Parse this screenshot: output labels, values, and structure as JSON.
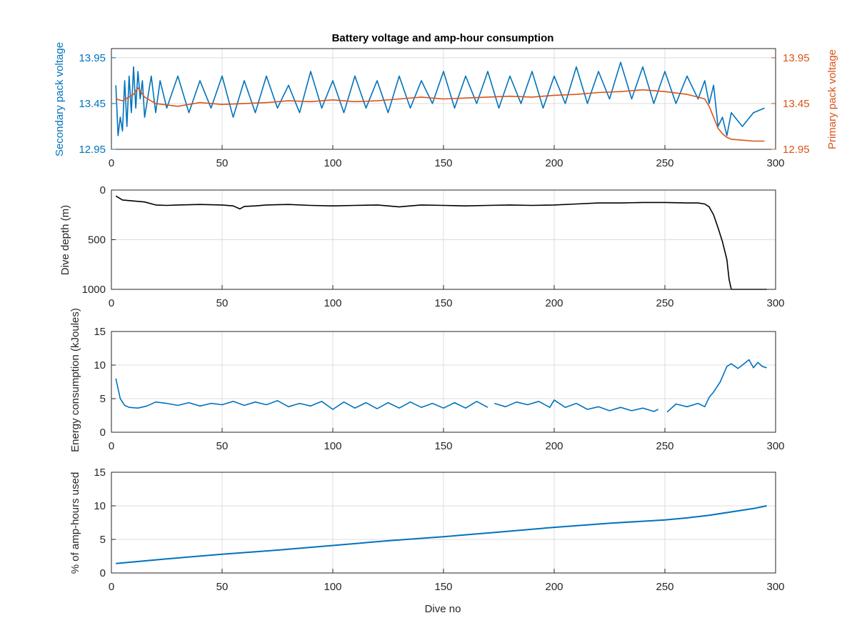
{
  "figure": {
    "title": "Battery voltage and amp-hour consumption",
    "xlabel": "Dive no",
    "colors": {
      "blue": "#0072bd",
      "orange": "#d95319",
      "black": "#000000",
      "grid": "#dcdcdc",
      "axis": "#262626"
    }
  },
  "chart_data": [
    {
      "type": "line",
      "title": "Battery voltage and amp-hour consumption",
      "xlabel": "",
      "ylabel_left": "Secondary pack voltage",
      "ylabel_right": "Primary pack voltage",
      "xlim": [
        0,
        300
      ],
      "ylim": [
        12.95,
        14.05
      ],
      "xticks": [
        "0",
        "50",
        "100",
        "150",
        "200",
        "250",
        "300"
      ],
      "yticks_left": [
        "12.95",
        "13.45",
        "13.95"
      ],
      "yticks_right": [
        "12.95",
        "13.45",
        "13.95"
      ],
      "grid": true,
      "series": [
        {
          "name": "Secondary pack voltage",
          "color": "#0072bd",
          "x": [
            2,
            3,
            4,
            5,
            6,
            7,
            8,
            9,
            10,
            11,
            12,
            13,
            14,
            15,
            18,
            20,
            22,
            25,
            30,
            35,
            40,
            45,
            50,
            55,
            60,
            65,
            70,
            75,
            80,
            85,
            90,
            95,
            100,
            105,
            110,
            115,
            120,
            125,
            130,
            135,
            140,
            145,
            150,
            155,
            160,
            165,
            170,
            175,
            180,
            185,
            190,
            195,
            200,
            205,
            210,
            215,
            220,
            225,
            230,
            235,
            240,
            245,
            250,
            255,
            260,
            265,
            268,
            270,
            272,
            274,
            276,
            278,
            280,
            285,
            290,
            295
          ],
          "y": [
            13.65,
            13.1,
            13.3,
            13.15,
            13.7,
            13.2,
            13.75,
            13.35,
            13.85,
            13.4,
            13.8,
            13.5,
            13.7,
            13.3,
            13.75,
            13.35,
            13.7,
            13.4,
            13.75,
            13.35,
            13.7,
            13.4,
            13.75,
            13.3,
            13.7,
            13.35,
            13.75,
            13.4,
            13.65,
            13.35,
            13.8,
            13.4,
            13.7,
            13.35,
            13.75,
            13.4,
            13.7,
            13.35,
            13.75,
            13.4,
            13.7,
            13.45,
            13.8,
            13.4,
            13.75,
            13.45,
            13.8,
            13.4,
            13.75,
            13.45,
            13.8,
            13.4,
            13.75,
            13.45,
            13.85,
            13.45,
            13.8,
            13.5,
            13.9,
            13.5,
            13.85,
            13.45,
            13.8,
            13.45,
            13.75,
            13.5,
            13.7,
            13.45,
            13.65,
            13.2,
            13.3,
            13.1,
            13.35,
            13.2,
            13.35,
            13.4
          ]
        },
        {
          "name": "Primary pack voltage",
          "color": "#d95319",
          "x": [
            2,
            5,
            10,
            12,
            15,
            20,
            30,
            40,
            50,
            60,
            70,
            80,
            90,
            100,
            110,
            120,
            130,
            140,
            150,
            160,
            170,
            180,
            190,
            200,
            210,
            220,
            230,
            240,
            250,
            260,
            265,
            268,
            270,
            272,
            274,
            276,
            278,
            280,
            285,
            290,
            295
          ],
          "y": [
            13.5,
            13.48,
            13.55,
            13.62,
            13.52,
            13.45,
            13.42,
            13.46,
            13.44,
            13.45,
            13.46,
            13.48,
            13.47,
            13.49,
            13.47,
            13.48,
            13.5,
            13.52,
            13.5,
            13.51,
            13.52,
            13.53,
            13.52,
            13.54,
            13.55,
            13.57,
            13.58,
            13.6,
            13.58,
            13.55,
            13.52,
            13.5,
            13.42,
            13.3,
            13.18,
            13.12,
            13.08,
            13.06,
            13.05,
            13.04,
            13.04
          ]
        }
      ]
    },
    {
      "type": "line",
      "ylabel": "Dive depth (m)",
      "xlim": [
        0,
        300
      ],
      "ylim": [
        0,
        1000
      ],
      "y_reversed": true,
      "xticks": [
        "0",
        "50",
        "100",
        "150",
        "200",
        "250",
        "300"
      ],
      "yticks": [
        "0",
        "500",
        "1000"
      ],
      "grid": true,
      "series": [
        {
          "color": "#000000",
          "x": [
            2,
            5,
            10,
            15,
            20,
            25,
            30,
            40,
            50,
            55,
            58,
            60,
            65,
            70,
            80,
            90,
            100,
            110,
            120,
            125,
            130,
            135,
            140,
            150,
            160,
            170,
            180,
            190,
            200,
            210,
            220,
            230,
            240,
            250,
            260,
            265,
            268,
            270,
            272,
            274,
            276,
            278,
            279,
            280,
            290,
            296
          ],
          "y": [
            60,
            100,
            110,
            120,
            150,
            155,
            150,
            145,
            150,
            160,
            190,
            165,
            160,
            150,
            145,
            155,
            160,
            155,
            150,
            160,
            170,
            160,
            150,
            155,
            160,
            155,
            150,
            155,
            150,
            140,
            130,
            130,
            125,
            125,
            130,
            130,
            140,
            170,
            250,
            380,
            520,
            700,
            900,
            1000,
            1000,
            1000
          ]
        }
      ]
    },
    {
      "type": "line",
      "ylabel": "Energy consumption (kJoules)",
      "xlim": [
        0,
        300
      ],
      "ylim": [
        0,
        15
      ],
      "xticks": [
        "0",
        "50",
        "100",
        "150",
        "200",
        "250",
        "300"
      ],
      "yticks": [
        "0",
        "5",
        "10",
        "15"
      ],
      "grid": true,
      "series": [
        {
          "color": "#0072bd",
          "segments": [
            {
              "x": [
                2,
                4,
                6,
                8,
                12,
                16,
                20,
                25,
                30,
                35,
                40,
                45,
                50,
                55,
                60,
                65,
                70,
                75,
                80,
                85,
                90,
                95,
                100,
                105,
                110,
                115,
                120,
                125,
                130,
                135,
                140,
                145,
                150,
                155,
                160,
                165,
                170
              ],
              "y": [
                8.0,
                5.0,
                4.0,
                3.7,
                3.6,
                3.9,
                4.5,
                4.3,
                4.0,
                4.4,
                3.9,
                4.3,
                4.1,
                4.6,
                4.0,
                4.5,
                4.1,
                4.7,
                3.8,
                4.3,
                3.9,
                4.6,
                3.4,
                4.5,
                3.6,
                4.4,
                3.5,
                4.4,
                3.6,
                4.5,
                3.7,
                4.3,
                3.6,
                4.4,
                3.6,
                4.6,
                3.7
              ]
            },
            {
              "x": [
                173,
                178,
                183,
                188,
                193,
                198,
                200,
                205,
                210,
                215,
                220,
                225,
                230,
                235,
                240,
                245,
                247
              ],
              "y": [
                4.3,
                3.8,
                4.5,
                4.1,
                4.6,
                3.7,
                4.8,
                3.7,
                4.3,
                3.4,
                3.8,
                3.2,
                3.7,
                3.2,
                3.6,
                3.1,
                3.4
              ]
            },
            {
              "x": [
                251,
                255,
                260,
                265,
                268,
                270,
                272,
                275,
                278,
                280,
                283,
                285,
                288,
                290,
                292,
                294,
                296
              ],
              "y": [
                3.0,
                4.2,
                3.8,
                4.3,
                3.8,
                5.2,
                6.0,
                7.5,
                9.8,
                10.2,
                9.5,
                10.0,
                10.8,
                9.6,
                10.4,
                9.8,
                9.6
              ]
            }
          ]
        }
      ]
    },
    {
      "type": "line",
      "ylabel": "% of amp-hours used",
      "xlabel": "Dive no",
      "xlim": [
        0,
        300
      ],
      "ylim": [
        0,
        15
      ],
      "xticks": [
        "0",
        "50",
        "100",
        "150",
        "200",
        "250",
        "300"
      ],
      "yticks": [
        "0",
        "5",
        "10",
        "15"
      ],
      "grid": true,
      "series": [
        {
          "color": "#0072bd",
          "x": [
            2,
            25,
            50,
            75,
            100,
            125,
            150,
            175,
            200,
            225,
            250,
            260,
            270,
            280,
            290,
            296
          ],
          "y": [
            1.4,
            2.1,
            2.8,
            3.4,
            4.1,
            4.8,
            5.4,
            6.1,
            6.8,
            7.4,
            7.9,
            8.2,
            8.6,
            9.1,
            9.6,
            10.0
          ]
        }
      ]
    }
  ]
}
